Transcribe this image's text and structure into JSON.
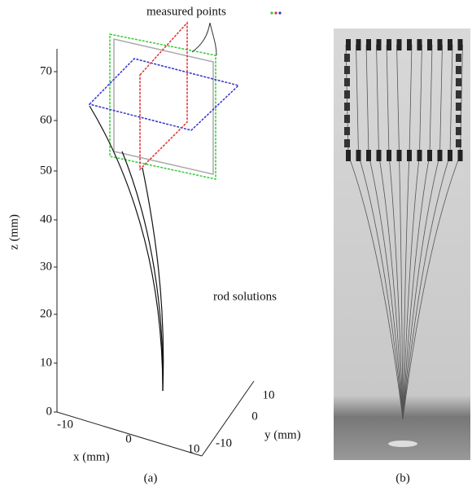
{
  "figure": {
    "annotations": {
      "measured_points": "measured points",
      "rod_solutions": "rod solutions"
    },
    "axes": {
      "z_label": "z (mm)",
      "x_label": "x (mm)",
      "y_label": "y (mm)",
      "z_ticks": [
        "0",
        "10",
        "20",
        "30",
        "40",
        "50",
        "60",
        "70"
      ],
      "x_ticks": [
        "-10",
        "0",
        "10"
      ],
      "y_ticks": [
        "-10",
        "0",
        "10"
      ]
    },
    "panels": {
      "a": "(a)",
      "b": "(b)"
    }
  }
}
